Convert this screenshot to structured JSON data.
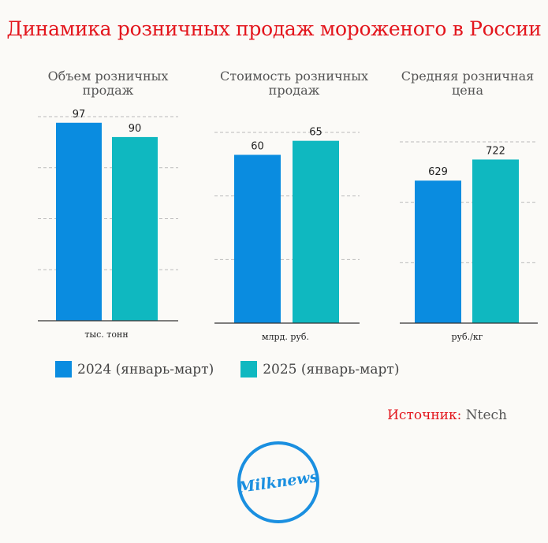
{
  "title": "Динамика розничных продаж мороженого в России",
  "legend": [
    {
      "label": "2024 (январь-март)",
      "color": "#0a8ce0"
    },
    {
      "label": "2025 (январь-март)",
      "color": "#0fb8c0"
    }
  ],
  "source": {
    "key": "Источник:",
    "value": "Ntech"
  },
  "logo": "Milknews",
  "chart_data": [
    {
      "type": "bar",
      "title": "Объем розничных продаж",
      "categories": [
        "2024 (январь-март)",
        "2025 (январь-март)"
      ],
      "values": [
        97,
        90
      ],
      "ylim": [
        0,
        100
      ],
      "grid": true,
      "unit": "тыс. тонн"
    },
    {
      "type": "bar",
      "title": "Стоимость розничных продаж",
      "categories": [
        "2024 (январь-март)",
        "2025 (январь-март)"
      ],
      "values": [
        60,
        65
      ],
      "ylim": [
        0,
        68
      ],
      "grid": true,
      "unit": "млрд. руб."
    },
    {
      "type": "bar",
      "title": "Средняя розничная цена",
      "categories": [
        "2024 (январь-март)",
        "2025 (январь-март)"
      ],
      "values": [
        629,
        722
      ],
      "ylim": [
        0,
        800
      ],
      "grid": true,
      "unit": "руб./кг"
    }
  ]
}
